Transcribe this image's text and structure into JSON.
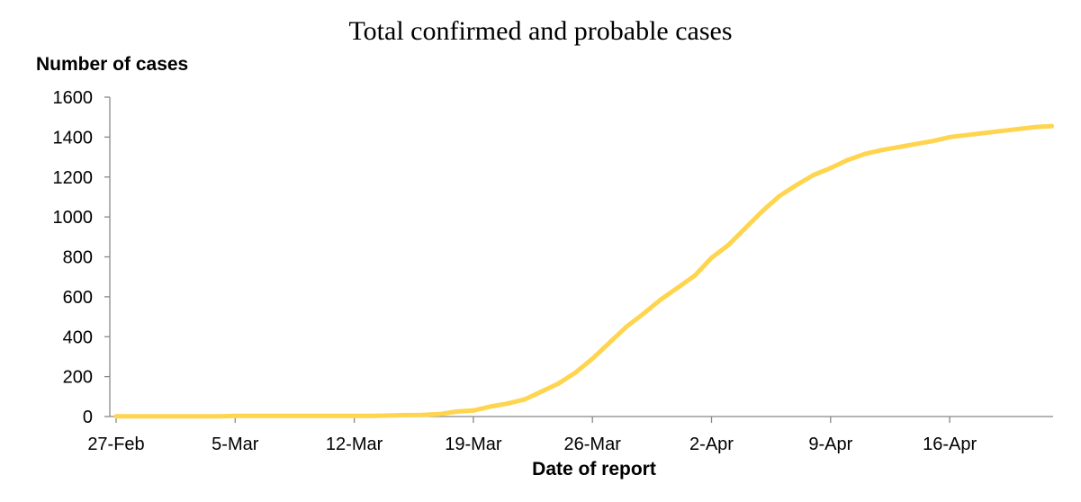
{
  "chart_data": {
    "type": "line",
    "title": "Total confirmed and probable cases",
    "xlabel": "Date of report",
    "ylabel": "Number of cases",
    "ylim": [
      0,
      1600
    ],
    "yticks": [
      0,
      200,
      400,
      600,
      800,
      1000,
      1200,
      1400,
      1600
    ],
    "xtick_labels": [
      "27-Feb",
      "5-Mar",
      "12-Mar",
      "19-Mar",
      "26-Mar",
      "2-Apr",
      "9-Apr",
      "16-Apr"
    ],
    "grid": false,
    "legend": "none",
    "series": [
      {
        "color": "#FFD54F",
        "x": [
          "27-Feb",
          "28-Feb",
          "29-Feb",
          "1-Mar",
          "2-Mar",
          "3-Mar",
          "4-Mar",
          "5-Mar",
          "6-Mar",
          "7-Mar",
          "8-Mar",
          "9-Mar",
          "10-Mar",
          "11-Mar",
          "12-Mar",
          "13-Mar",
          "14-Mar",
          "15-Mar",
          "16-Mar",
          "17-Mar",
          "18-Mar",
          "19-Mar",
          "20-Mar",
          "21-Mar",
          "22-Mar",
          "23-Mar",
          "24-Mar",
          "25-Mar",
          "26-Mar",
          "27-Mar",
          "28-Mar",
          "29-Mar",
          "30-Mar",
          "31-Mar",
          "1-Apr",
          "2-Apr",
          "3-Apr",
          "4-Apr",
          "5-Apr",
          "6-Apr",
          "7-Apr",
          "8-Apr",
          "9-Apr",
          "10-Apr",
          "11-Apr",
          "12-Apr",
          "13-Apr",
          "14-Apr",
          "15-Apr",
          "16-Apr",
          "17-Apr",
          "18-Apr",
          "19-Apr",
          "20-Apr",
          "21-Apr",
          "22-Apr"
        ],
        "values": [
          1,
          1,
          1,
          1,
          1,
          1,
          1,
          3,
          3,
          3,
          3,
          3,
          3,
          3,
          3,
          3,
          5,
          7,
          8,
          12,
          25,
          30,
          50,
          65,
          85,
          125,
          165,
          220,
          290,
          370,
          450,
          515,
          585,
          645,
          705,
          795,
          860,
          945,
          1030,
          1105,
          1160,
          1210,
          1245,
          1285,
          1315,
          1335,
          1350,
          1365,
          1380,
          1400,
          1410,
          1420,
          1430,
          1440,
          1450,
          1455
        ]
      }
    ]
  }
}
